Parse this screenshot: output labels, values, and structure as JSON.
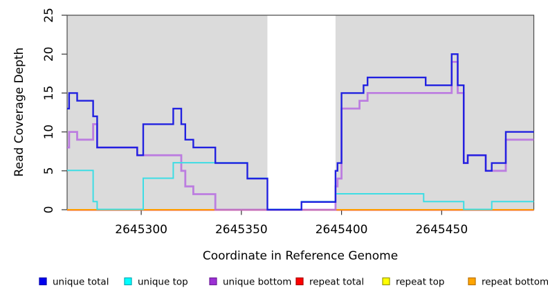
{
  "chart_data": {
    "type": "line",
    "subtype": "step-coverage-plot",
    "title": "",
    "xlabel": "Coordinate in Reference Genome",
    "ylabel": "Read Coverage Depth",
    "xlim": [
      2645263,
      2645496
    ],
    "ylim": [
      0,
      25
    ],
    "xticks": [
      2645300,
      2645350,
      2645400,
      2645450
    ],
    "yticks": [
      0,
      5,
      10,
      15,
      20,
      25
    ],
    "grid": false,
    "legend_position": "bottom",
    "plot_background": "#dbdbdb",
    "highlight_band": {
      "x_from": 2645363,
      "x_to": 2645397,
      "color": "#ffffff"
    },
    "box_color": "#4a4a4a",
    "series": [
      {
        "name": "unique total",
        "color": "#2121e0",
        "points": [
          [
            2645263,
            13
          ],
          [
            2645264,
            15
          ],
          [
            2645268,
            14
          ],
          [
            2645276,
            12
          ],
          [
            2645278,
            8
          ],
          [
            2645298,
            7
          ],
          [
            2645301,
            11
          ],
          [
            2645316,
            13
          ],
          [
            2645320,
            11
          ],
          [
            2645322,
            9
          ],
          [
            2645326,
            8
          ],
          [
            2645337,
            6
          ],
          [
            2645353,
            4
          ],
          [
            2645363,
            0
          ],
          [
            2645380,
            1
          ],
          [
            2645397,
            5
          ],
          [
            2645398,
            6
          ],
          [
            2645400,
            15
          ],
          [
            2645411,
            16
          ],
          [
            2645413,
            17
          ],
          [
            2645442,
            16
          ],
          [
            2645455,
            20
          ],
          [
            2645458,
            16
          ],
          [
            2645461,
            6
          ],
          [
            2645463,
            7
          ],
          [
            2645472,
            5
          ],
          [
            2645475,
            6
          ],
          [
            2645482,
            10
          ],
          [
            2645496,
            10
          ]
        ]
      },
      {
        "name": "unique top",
        "color": "#3ddde4",
        "points": [
          [
            2645263,
            5
          ],
          [
            2645276,
            1
          ],
          [
            2645278,
            0
          ],
          [
            2645301,
            4
          ],
          [
            2645316,
            6
          ],
          [
            2645353,
            4
          ],
          [
            2645363,
            0
          ],
          [
            2645380,
            1
          ],
          [
            2645397,
            2
          ],
          [
            2645441,
            1
          ],
          [
            2645461,
            0
          ],
          [
            2645475,
            1
          ],
          [
            2645496,
            1
          ]
        ]
      },
      {
        "name": "unique bottom",
        "color": "#b66ce0",
        "points": [
          [
            2645263,
            8
          ],
          [
            2645264,
            10
          ],
          [
            2645268,
            9
          ],
          [
            2645276,
            11
          ],
          [
            2645278,
            8
          ],
          [
            2645298,
            7
          ],
          [
            2645320,
            5
          ],
          [
            2645322,
            3
          ],
          [
            2645326,
            2
          ],
          [
            2645337,
            0
          ],
          [
            2645397,
            3
          ],
          [
            2645398,
            4
          ],
          [
            2645400,
            13
          ],
          [
            2645409,
            14
          ],
          [
            2645413,
            15
          ],
          [
            2645455,
            19
          ],
          [
            2645458,
            15
          ],
          [
            2645461,
            6
          ],
          [
            2645463,
            7
          ],
          [
            2645472,
            5
          ],
          [
            2645482,
            9
          ],
          [
            2645496,
            9
          ]
        ]
      },
      {
        "name": "repeat total",
        "color": "#e84444",
        "points": [
          [
            2645263,
            0
          ],
          [
            2645496,
            0
          ]
        ]
      },
      {
        "name": "repeat top",
        "color": "#ffee00",
        "points": [
          [
            2645263,
            0
          ],
          [
            2645496,
            0
          ]
        ]
      },
      {
        "name": "repeat bottom",
        "color": "#ff9d00",
        "points": [
          [
            2645263,
            0
          ],
          [
            2645496,
            0
          ]
        ]
      }
    ],
    "legend": [
      {
        "label": "unique total",
        "fill": "#0000ee",
        "border": "#0000b0"
      },
      {
        "label": "unique top",
        "fill": "#00ffff",
        "border": "#00aab4"
      },
      {
        "label": "unique bottom",
        "fill": "#9c30d4",
        "border": "#6f1f99"
      },
      {
        "label": "repeat total",
        "fill": "#ff0000",
        "border": "#aa0000"
      },
      {
        "label": "repeat top",
        "fill": "#ffff00",
        "border": "#999900"
      },
      {
        "label": "repeat bottom",
        "fill": "#ffa500",
        "border": "#bb7100"
      }
    ]
  }
}
